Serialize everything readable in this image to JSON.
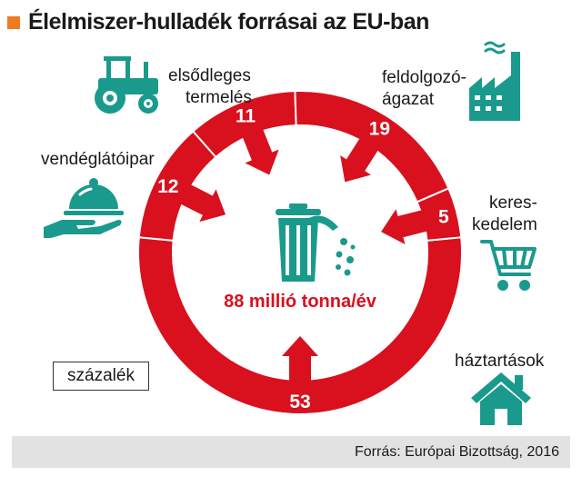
{
  "title": "Élelmiszer-hulladék forrásai az EU-ban",
  "unit_label": "százalék",
  "source": "Forrás: Európai Bizottság, 2016",
  "colors": {
    "ring": "#d9101e",
    "icon": "#1a9a8c",
    "accent": "#f07b1e",
    "center_text": "#d9101e"
  },
  "chart_data": {
    "type": "pie",
    "style": "donut",
    "total_label": "88 millió tonna/év",
    "unit": "százalék",
    "slices": [
      {
        "label": "háztartások",
        "value": 53,
        "icon": "house-icon"
      },
      {
        "label": "vendéglátóipar",
        "value": 12,
        "icon": "serving-cloche-icon"
      },
      {
        "label": "elsődleges termelés",
        "value": 11,
        "icon": "tractor-icon"
      },
      {
        "label": "feldolgozó-ágazat",
        "value": 19,
        "icon": "factory-icon"
      },
      {
        "label": "keres-kedelem",
        "value": 5,
        "icon": "shopping-cart-icon"
      }
    ]
  },
  "labels": {
    "primary_line1": "elsődleges",
    "primary_line2": "termelés",
    "processing_line1": "feldolgozó-",
    "processing_line2": "ágazat",
    "catering": "vendéglátóipar",
    "retail_line1": "keres-",
    "retail_line2": "kedelem",
    "households": "háztartások"
  },
  "center_icon": "trash-can-icon"
}
